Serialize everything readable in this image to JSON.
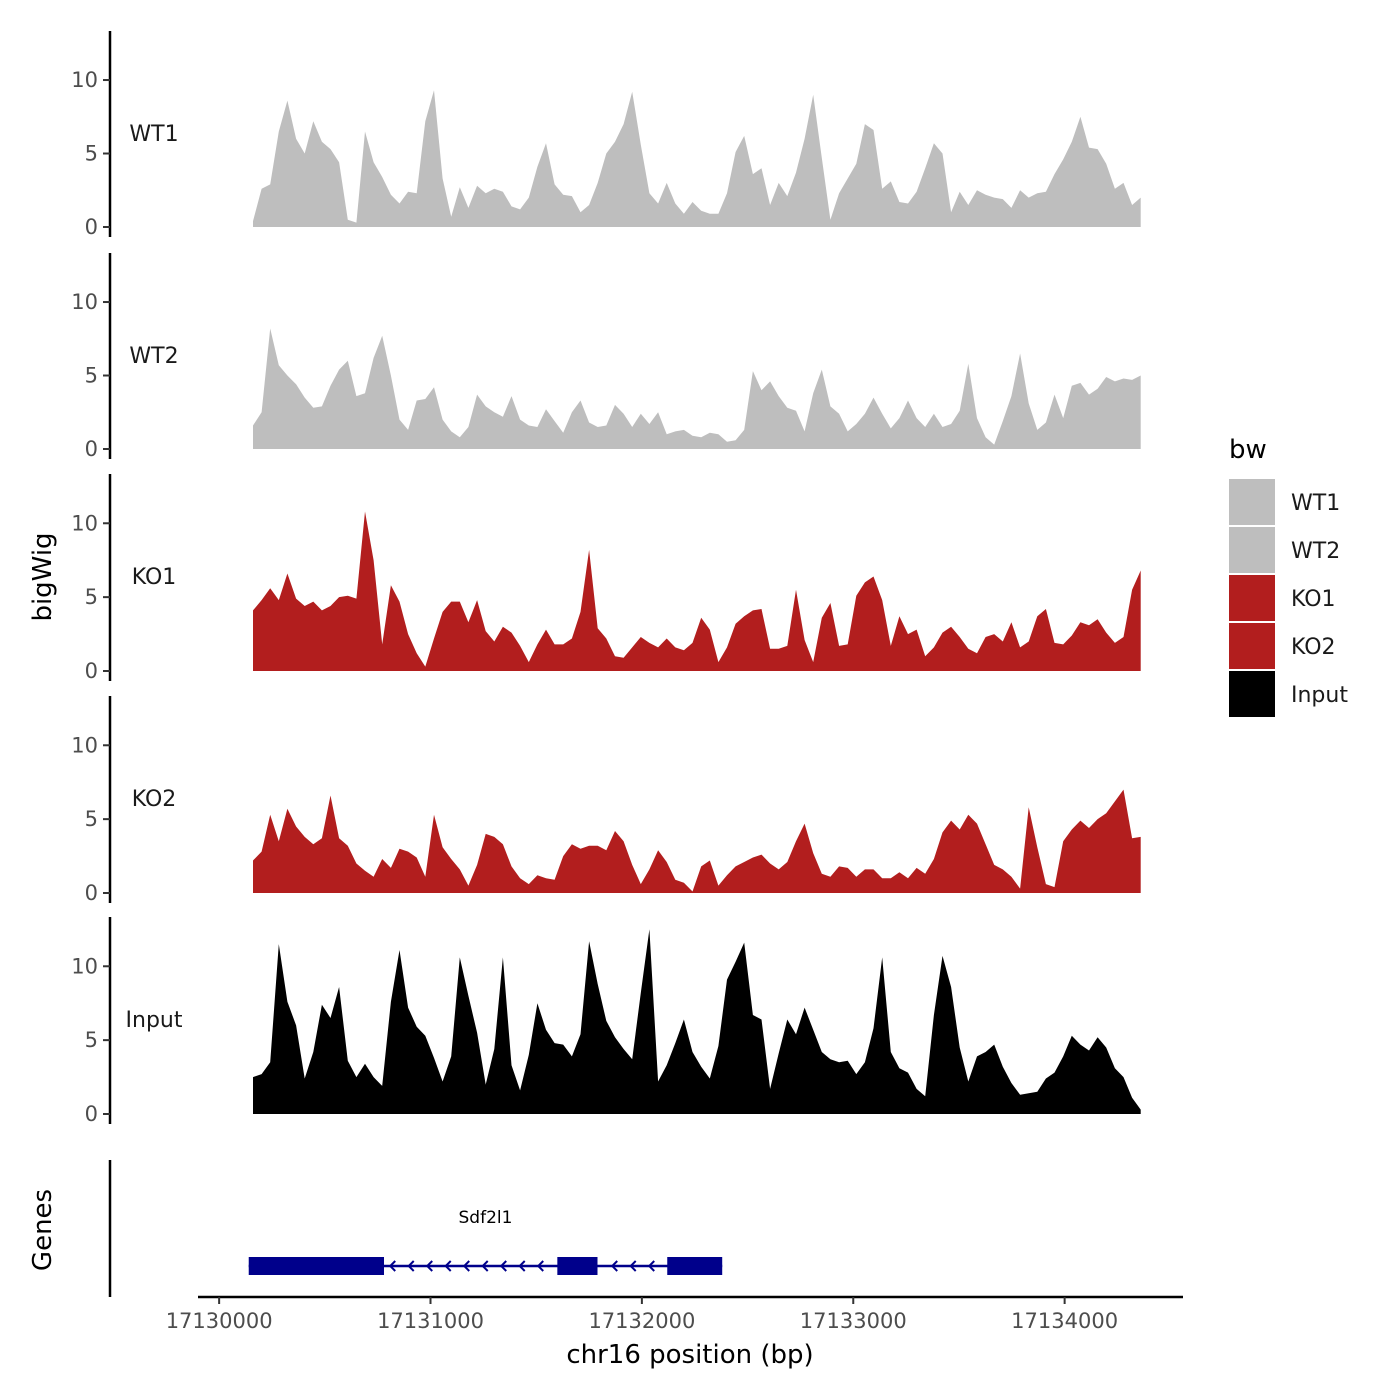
{
  "chart_data": {
    "type": "area",
    "title": "",
    "chromosome": "chr16",
    "xlabel": "chr16 position (bp)",
    "ylabel": "bigWig",
    "genes_label": "Genes",
    "xlim": [
      17129900,
      17134560
    ],
    "x_ticks": [
      17130000,
      17131000,
      17132000,
      17133000,
      17134000
    ],
    "x_tick_labels": [
      "17130000",
      "17131000",
      "17132000",
      "17133000",
      "17134000"
    ],
    "ylim": [
      0,
      13.2
    ],
    "y_ticks": [
      0,
      5,
      10
    ],
    "y_tick_labels": [
      "0",
      "5",
      "10"
    ],
    "legend": {
      "title": "bw",
      "entries": [
        {
          "label": "WT1",
          "color": "#bebebe"
        },
        {
          "label": "WT2",
          "color": "#bebebe"
        },
        {
          "label": "KO1",
          "color": "#b21e1e"
        },
        {
          "label": "KO2",
          "color": "#b21e1e"
        },
        {
          "label": "Input",
          "color": "#000000"
        }
      ]
    },
    "x_start": 17130160,
    "x_end": 17134360,
    "series": [
      {
        "name": "WT1",
        "color": "#bebebe",
        "values": [
          0.4,
          2.6,
          2.9,
          6.5,
          8.6,
          6.0,
          5.0,
          7.2,
          5.8,
          5.3,
          4.4,
          0.5,
          0.3,
          6.5,
          4.4,
          3.4,
          2.2,
          1.6,
          2.4,
          2.3,
          7.2,
          9.3,
          3.3,
          0.7,
          2.7,
          1.3,
          2.8,
          2.3,
          2.6,
          2.4,
          1.4,
          1.2,
          2.0,
          4.1,
          5.7,
          2.9,
          2.2,
          2.1,
          1.0,
          1.5,
          3.0,
          5.0,
          5.8,
          7.0,
          9.2,
          5.6,
          2.3,
          1.6,
          3.0,
          1.6,
          0.9,
          1.7,
          1.1,
          0.9,
          0.9,
          2.3,
          5.1,
          6.2,
          3.6,
          4.0,
          1.5,
          3.0,
          2.1,
          3.7,
          6.0,
          9.0,
          4.7,
          0.5,
          2.3,
          3.3,
          4.3,
          7.0,
          6.6,
          2.6,
          3.1,
          1.7,
          1.6,
          2.4,
          4.0,
          5.7,
          5.0,
          1.0,
          2.4,
          1.5,
          2.5,
          2.2,
          2.0,
          1.9,
          1.3,
          2.5,
          2.0,
          2.3,
          2.4,
          3.6,
          4.6,
          5.8,
          7.5,
          5.4,
          5.3,
          4.3,
          2.6,
          3.0,
          1.5,
          2.0
        ]
      },
      {
        "name": "WT2",
        "color": "#bebebe",
        "values": [
          1.6,
          2.5,
          8.2,
          5.7,
          5.0,
          4.4,
          3.5,
          2.8,
          2.9,
          4.3,
          5.4,
          6.0,
          3.6,
          3.8,
          6.2,
          7.7,
          5.0,
          2.0,
          1.3,
          3.3,
          3.4,
          4.2,
          2.0,
          1.2,
          0.8,
          1.5,
          3.7,
          2.9,
          2.5,
          2.2,
          3.6,
          2.0,
          1.6,
          1.5,
          2.7,
          1.9,
          1.1,
          2.5,
          3.3,
          1.8,
          1.5,
          1.6,
          3.0,
          2.4,
          1.5,
          2.4,
          1.7,
          2.5,
          1.0,
          1.2,
          1.3,
          0.9,
          0.8,
          1.1,
          1.0,
          0.5,
          0.6,
          1.3,
          5.3,
          4.0,
          4.6,
          3.6,
          2.8,
          2.6,
          1.2,
          3.8,
          5.4,
          2.9,
          2.4,
          1.2,
          1.7,
          2.4,
          3.5,
          2.4,
          1.4,
          2.1,
          3.3,
          2.1,
          1.5,
          2.4,
          1.5,
          1.7,
          2.6,
          5.8,
          2.1,
          0.8,
          0.3,
          1.9,
          3.6,
          6.5,
          3.1,
          1.3,
          1.8,
          3.7,
          2.1,
          4.3,
          4.5,
          3.7,
          4.1,
          4.9,
          4.6,
          4.8,
          4.7,
          5.0
        ]
      },
      {
        "name": "KO1",
        "color": "#b21e1e",
        "values": [
          4.1,
          4.8,
          5.6,
          4.8,
          6.6,
          4.9,
          4.4,
          4.7,
          4.1,
          4.4,
          5.0,
          5.1,
          4.9,
          10.8,
          7.5,
          1.8,
          5.8,
          4.7,
          2.5,
          1.2,
          0.3,
          2.2,
          4.0,
          4.7,
          4.7,
          3.3,
          4.8,
          2.7,
          2.0,
          3.0,
          2.6,
          1.7,
          0.6,
          1.8,
          2.8,
          1.8,
          1.8,
          2.2,
          4.0,
          8.2,
          2.9,
          2.2,
          1.0,
          0.9,
          1.6,
          2.3,
          1.9,
          1.6,
          2.2,
          1.6,
          1.4,
          1.9,
          3.6,
          2.8,
          0.6,
          1.6,
          3.2,
          3.7,
          4.1,
          4.2,
          1.5,
          1.5,
          1.7,
          5.5,
          2.1,
          0.6,
          3.6,
          4.6,
          1.7,
          1.8,
          5.1,
          6.0,
          6.4,
          4.8,
          1.7,
          3.7,
          2.5,
          2.8,
          1.0,
          1.6,
          2.6,
          3.0,
          2.3,
          1.5,
          1.2,
          2.3,
          2.5,
          2.0,
          3.3,
          1.6,
          2.0,
          3.7,
          4.2,
          1.9,
          1.8,
          2.4,
          3.3,
          3.1,
          3.5,
          2.6,
          1.9,
          2.3,
          5.5,
          6.8
        ]
      },
      {
        "name": "KO2",
        "color": "#b21e1e",
        "values": [
          2.2,
          2.8,
          5.3,
          3.5,
          5.7,
          4.5,
          3.8,
          3.3,
          3.7,
          6.6,
          3.7,
          3.2,
          2.0,
          1.5,
          1.1,
          2.3,
          1.7,
          3.0,
          2.8,
          2.4,
          1.1,
          5.3,
          3.1,
          2.3,
          1.6,
          0.5,
          1.9,
          4.0,
          3.8,
          3.3,
          1.8,
          1.0,
          0.6,
          1.2,
          1.0,
          0.9,
          2.5,
          3.3,
          3.0,
          3.2,
          3.2,
          2.9,
          4.2,
          3.5,
          1.9,
          0.6,
          1.6,
          2.9,
          2.1,
          0.9,
          0.7,
          0.1,
          1.8,
          2.2,
          0.5,
          1.2,
          1.8,
          2.1,
          2.4,
          2.6,
          2.0,
          1.6,
          2.1,
          3.5,
          4.7,
          2.7,
          1.3,
          1.1,
          1.8,
          1.7,
          1.1,
          1.6,
          1.6,
          1.0,
          1.0,
          1.4,
          1.0,
          1.7,
          1.3,
          2.3,
          4.1,
          4.9,
          4.3,
          5.3,
          4.7,
          3.3,
          1.9,
          1.6,
          1.1,
          0.3,
          5.8,
          3.1,
          0.6,
          0.4,
          3.5,
          4.3,
          4.9,
          4.4,
          5.0,
          5.4,
          6.2,
          7.0,
          3.7,
          3.8
        ]
      },
      {
        "name": "Input",
        "color": "#000000",
        "values": [
          2.5,
          2.7,
          3.5,
          11.5,
          7.6,
          6.0,
          2.4,
          4.2,
          7.4,
          6.5,
          8.6,
          3.6,
          2.5,
          3.4,
          2.5,
          1.9,
          7.6,
          11.1,
          7.2,
          5.9,
          5.3,
          3.8,
          2.2,
          3.9,
          10.6,
          8.0,
          5.5,
          2.0,
          4.4,
          10.6,
          3.3,
          1.6,
          4.0,
          7.5,
          5.7,
          4.8,
          4.7,
          3.9,
          5.4,
          11.7,
          8.8,
          6.3,
          5.2,
          4.4,
          3.7,
          8.2,
          12.5,
          2.2,
          3.3,
          4.8,
          6.4,
          4.2,
          3.2,
          2.4,
          4.6,
          9.1,
          10.3,
          11.6,
          6.7,
          6.4,
          1.7,
          4.1,
          6.4,
          5.4,
          7.2,
          5.7,
          4.2,
          3.7,
          3.5,
          3.6,
          2.7,
          3.5,
          5.8,
          10.6,
          4.2,
          3.1,
          2.8,
          1.7,
          1.2,
          6.7,
          10.7,
          8.6,
          4.5,
          2.2,
          3.9,
          4.2,
          4.7,
          3.2,
          2.1,
          1.3,
          1.4,
          1.5,
          2.4,
          2.8,
          3.9,
          5.3,
          4.7,
          4.3,
          5.2,
          4.5,
          3.1,
          2.5,
          1.1,
          0.3
        ]
      }
    ],
    "genes": [
      {
        "name": "Sdf2l1",
        "strand": "-",
        "color": "#00008b",
        "start": 17130140,
        "end": 17132380,
        "exons": [
          [
            17130140,
            17130780
          ],
          [
            17131600,
            17131790
          ],
          [
            17132120,
            17132380
          ]
        ]
      }
    ]
  }
}
